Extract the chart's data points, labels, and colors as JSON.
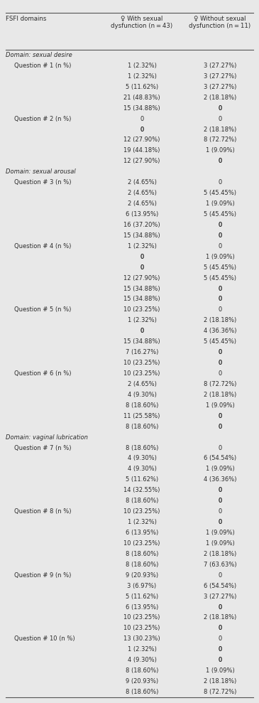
{
  "title_col0": "FSFI domains",
  "title_col1": "♀ With sexual\ndysfunction (n = 43)",
  "title_col2": "♀ Without sexual\ndysfunction (n = 11)",
  "bg_color": "#e8e8e8",
  "rows": [
    {
      "col0": "Domain: sexual desire",
      "col1": "",
      "col2": "",
      "style": "domain"
    },
    {
      "col0": "Question # 1 (n %)",
      "col1": "1 (2.32%)",
      "col2": "3 (27.27%)",
      "style": "question"
    },
    {
      "col0": "",
      "col1": "1 (2.32%)",
      "col2": "3 (27.27%)",
      "style": "data"
    },
    {
      "col0": "",
      "col1": "5 (11.62%)",
      "col2": "3 (27.27%)",
      "style": "data"
    },
    {
      "col0": "",
      "col1": "21 (48.83%)",
      "col2": "2 (18.18%)",
      "style": "data"
    },
    {
      "col0": "",
      "col1": "15 (34.88%)",
      "col2": "0",
      "style": "data"
    },
    {
      "col0": "Question # 2 (n %)",
      "col1": "0",
      "col2": "0",
      "style": "question"
    },
    {
      "col0": "",
      "col1": "0",
      "col2": "2 (18.18%)",
      "style": "data"
    },
    {
      "col0": "",
      "col1": "12 (27.90%)",
      "col2": "8 (72.72%)",
      "style": "data"
    },
    {
      "col0": "",
      "col1": "19 (44.18%)",
      "col2": "1 (9.09%)",
      "style": "data"
    },
    {
      "col0": "",
      "col1": "12 (27.90%)",
      "col2": "0",
      "style": "data"
    },
    {
      "col0": "Domain: sexual arousal",
      "col1": "",
      "col2": "",
      "style": "domain"
    },
    {
      "col0": "Question # 3 (n %)",
      "col1": "2 (4.65%)",
      "col2": "0",
      "style": "question"
    },
    {
      "col0": "",
      "col1": "2 (4.65%)",
      "col2": "5 (45.45%)",
      "style": "data"
    },
    {
      "col0": "",
      "col1": "2 (4.65%)",
      "col2": "1 (9.09%)",
      "style": "data"
    },
    {
      "col0": "",
      "col1": "6 (13.95%)",
      "col2": "5 (45.45%)",
      "style": "data"
    },
    {
      "col0": "",
      "col1": "16 (37.20%)",
      "col2": "0",
      "style": "data"
    },
    {
      "col0": "",
      "col1": "15 (34.88%)",
      "col2": "0",
      "style": "data"
    },
    {
      "col0": "Question # 4 (n %)",
      "col1": "1 (2.32%)",
      "col2": "0",
      "style": "question"
    },
    {
      "col0": "",
      "col1": "0",
      "col2": "1 (9.09%)",
      "style": "data"
    },
    {
      "col0": "",
      "col1": "0",
      "col2": "5 (45.45%)",
      "style": "data"
    },
    {
      "col0": "",
      "col1": "12 (27.90%)",
      "col2": "5 (45.45%)",
      "style": "data"
    },
    {
      "col0": "",
      "col1": "15 (34.88%)",
      "col2": "0",
      "style": "data"
    },
    {
      "col0": "",
      "col1": "15 (34.88%)",
      "col2": "0",
      "style": "data"
    },
    {
      "col0": "Question # 5 (n %)",
      "col1": "10 (23.25%)",
      "col2": "0",
      "style": "question"
    },
    {
      "col0": "",
      "col1": "1 (2.32%)",
      "col2": "2 (18.18%)",
      "style": "data"
    },
    {
      "col0": "",
      "col1": "0",
      "col2": "4 (36.36%)",
      "style": "data"
    },
    {
      "col0": "",
      "col1": "15 (34.88%)",
      "col2": "5 (45.45%)",
      "style": "data"
    },
    {
      "col0": "",
      "col1": "7 (16.27%)",
      "col2": "0",
      "style": "data"
    },
    {
      "col0": "",
      "col1": "10 (23.25%)",
      "col2": "0",
      "style": "data"
    },
    {
      "col0": "Question # 6 (n %)",
      "col1": "10 (23.25%)",
      "col2": "0",
      "style": "question"
    },
    {
      "col0": "",
      "col1": "2 (4.65%)",
      "col2": "8 (72.72%)",
      "style": "data"
    },
    {
      "col0": "",
      "col1": "4 (9.30%)",
      "col2": "2 (18.18%)",
      "style": "data"
    },
    {
      "col0": "",
      "col1": "8 (18.60%)",
      "col2": "1 (9.09%)",
      "style": "data"
    },
    {
      "col0": "",
      "col1": "11 (25.58%)",
      "col2": "0",
      "style": "data"
    },
    {
      "col0": "",
      "col1": "8 (18.60%)",
      "col2": "0",
      "style": "data"
    },
    {
      "col0": "Domain: vaginal lubrication",
      "col1": "",
      "col2": "",
      "style": "domain"
    },
    {
      "col0": "Question # 7 (n %)",
      "col1": "8 (18.60%)",
      "col2": "0",
      "style": "question"
    },
    {
      "col0": "",
      "col1": "4 (9.30%)",
      "col2": "6 (54.54%)",
      "style": "data"
    },
    {
      "col0": "",
      "col1": "4 (9.30%)",
      "col2": "1 (9.09%)",
      "style": "data"
    },
    {
      "col0": "",
      "col1": "5 (11.62%)",
      "col2": "4 (36.36%)",
      "style": "data"
    },
    {
      "col0": "",
      "col1": "14 (32.55%)",
      "col2": "0",
      "style": "data"
    },
    {
      "col0": "",
      "col1": "8 (18.60%)",
      "col2": "0",
      "style": "data"
    },
    {
      "col0": "Question # 8 (n %)",
      "col1": "10 (23.25%)",
      "col2": "0",
      "style": "question"
    },
    {
      "col0": "",
      "col1": "1 (2.32%)",
      "col2": "0",
      "style": "data"
    },
    {
      "col0": "",
      "col1": "6 (13.95%)",
      "col2": "1 (9.09%)",
      "style": "data"
    },
    {
      "col0": "",
      "col1": "10 (23.25%)",
      "col2": "1 (9.09%)",
      "style": "data"
    },
    {
      "col0": "",
      "col1": "8 (18.60%)",
      "col2": "2 (18.18%)",
      "style": "data"
    },
    {
      "col0": "",
      "col1": "8 (18.60%)",
      "col2": "7 (63.63%)",
      "style": "data"
    },
    {
      "col0": "Question # 9 (n %)",
      "col1": "9 (20.93%)",
      "col2": "0",
      "style": "question"
    },
    {
      "col0": "",
      "col1": "3 (6.97%)",
      "col2": "6 (54.54%)",
      "style": "data"
    },
    {
      "col0": "",
      "col1": "5 (11.62%)",
      "col2": "3 (27.27%)",
      "style": "data"
    },
    {
      "col0": "",
      "col1": "6 (13.95%)",
      "col2": "0",
      "style": "data"
    },
    {
      "col0": "",
      "col1": "10 (23.25%)",
      "col2": "2 (18.18%)",
      "style": "data"
    },
    {
      "col0": "",
      "col1": "10 (23.25%)",
      "col2": "0",
      "style": "data"
    },
    {
      "col0": "Question # 10 (n %)",
      "col1": "13 (30.23%)",
      "col2": "0",
      "style": "question"
    },
    {
      "col0": "",
      "col1": "1 (2.32%)",
      "col2": "0",
      "style": "data"
    },
    {
      "col0": "",
      "col1": "4 (9.30%)",
      "col2": "0",
      "style": "data"
    },
    {
      "col0": "",
      "col1": "8 (18.60%)",
      "col2": "1 (9.09%)",
      "style": "data"
    },
    {
      "col0": "",
      "col1": "9 (20.93%)",
      "col2": "2 (18.18%)",
      "style": "data"
    },
    {
      "col0": "",
      "col1": "8 (18.60%)",
      "col2": "8 (72.72%)",
      "style": "data"
    }
  ]
}
